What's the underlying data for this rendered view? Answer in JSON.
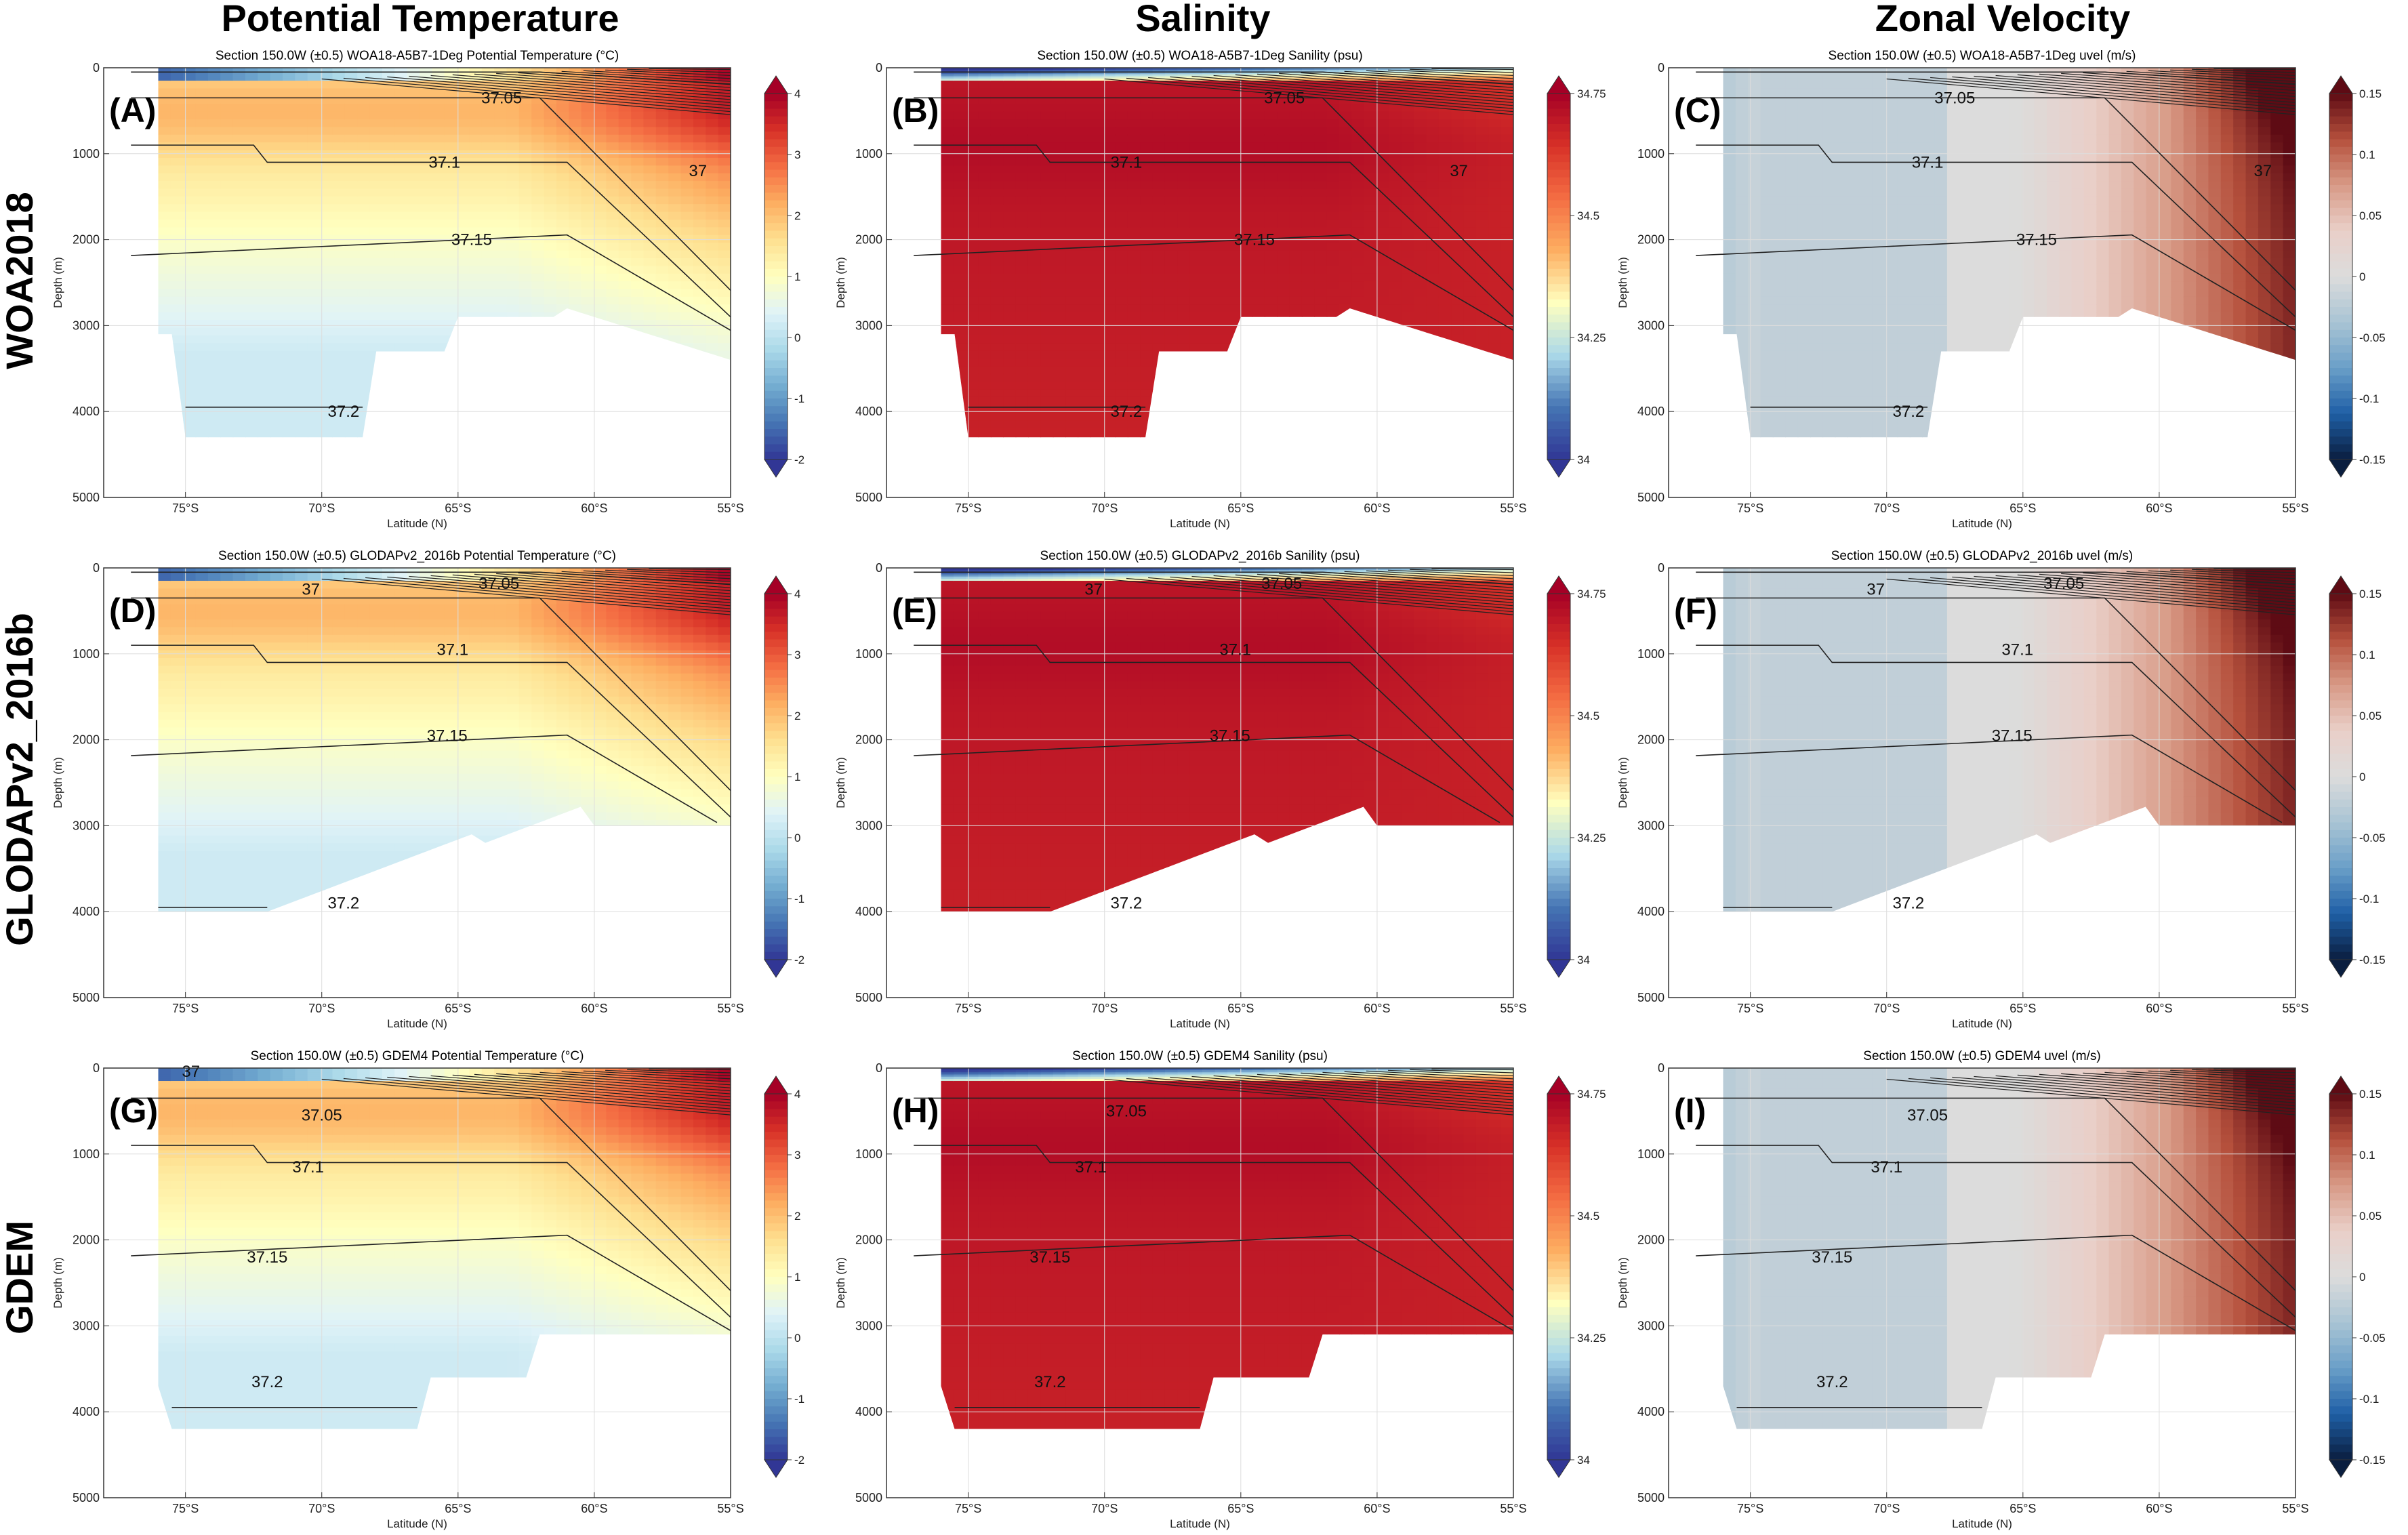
{
  "figure": {
    "column_titles": [
      "Potential Temperature",
      "Salinity",
      "Zonal Velocity"
    ],
    "row_titles": [
      "WOA2018",
      "GLODAPv2_2016b",
      "GDEM"
    ],
    "colors": {
      "temperature": [
        "#313695",
        "#4575b4",
        "#74add1",
        "#abd9e9",
        "#e0f3f8",
        "#ffffbf",
        "#fee090",
        "#fdae61",
        "#f46d43",
        "#d73027",
        "#a50026"
      ],
      "salinity": [
        "#313695",
        "#4575b4",
        "#abd9e9",
        "#ffffbf",
        "#fdae61",
        "#f46d43",
        "#d73027",
        "#a50026"
      ],
      "velocity": [
        "#0a1e3f",
        "#1f5fa6",
        "#6a9fc8",
        "#a9c4d4",
        "#dcdcdc",
        "#e9cfc8",
        "#d89a86",
        "#b5503c",
        "#5e0b14"
      ],
      "contour": "#222222",
      "grid": "#dddddd"
    }
  },
  "chart_data": [
    {
      "panel": "A",
      "letter": "(A)",
      "column": 0,
      "row": 0,
      "variable": "temperature",
      "type": "heatmap",
      "title": "Section 150.0W (±0.5) WOA18-A5B7-1Deg Potential Temperature (°C)",
      "xlabel": "Latitude (N)",
      "ylabel": "Depth (m)",
      "xlim": [
        -78,
        -55
      ],
      "ylim": [
        5000,
        0
      ],
      "xticks": [
        "75°S",
        "70°S",
        "65°S",
        "60°S",
        "55°S"
      ],
      "xtick_values": [
        -75,
        -70,
        -65,
        -60,
        -55
      ],
      "yticks": [
        0,
        1000,
        2000,
        3000,
        4000,
        5000
      ],
      "colorbar": {
        "ticks": [
          "-2",
          "-1",
          "0",
          "1",
          "2",
          "3",
          "4"
        ],
        "range": [
          -2,
          4
        ]
      },
      "contour_labels": [
        {
          "text": "37.05",
          "lat": -63.4,
          "depth": 350
        },
        {
          "text": "37.1",
          "lat": -65.5,
          "depth": 1100
        },
        {
          "text": "37.15",
          "lat": -64.5,
          "depth": 2000
        },
        {
          "text": "37.2",
          "lat": -69.2,
          "depth": 4000
        },
        {
          "text": "37",
          "lat": -56.2,
          "depth": 1200
        }
      ]
    },
    {
      "panel": "B",
      "letter": "(B)",
      "column": 1,
      "row": 0,
      "variable": "salinity",
      "type": "heatmap",
      "title": "Section 150.0W (±0.5) WOA18-A5B7-1Deg Sanility (psu)",
      "xlabel": "Latitude (N)",
      "ylabel": "Depth (m)",
      "xlim": [
        -78,
        -55
      ],
      "ylim": [
        5000,
        0
      ],
      "xticks": [
        "75°S",
        "70°S",
        "65°S",
        "60°S",
        "55°S"
      ],
      "xtick_values": [
        -75,
        -70,
        -65,
        -60,
        -55
      ],
      "yticks": [
        0,
        1000,
        2000,
        3000,
        4000,
        5000
      ],
      "colorbar": {
        "ticks": [
          "34",
          "34.25",
          "34.5",
          "34.75"
        ],
        "range": [
          34,
          34.75
        ]
      },
      "contour_labels": [
        {
          "text": "37.05",
          "lat": -63.4,
          "depth": 350
        },
        {
          "text": "37.1",
          "lat": -69.2,
          "depth": 1100
        },
        {
          "text": "37.15",
          "lat": -64.5,
          "depth": 2000
        },
        {
          "text": "37.2",
          "lat": -69.2,
          "depth": 4000
        },
        {
          "text": "37",
          "lat": -57.0,
          "depth": 1200
        }
      ]
    },
    {
      "panel": "C",
      "letter": "(C)",
      "column": 2,
      "row": 0,
      "variable": "velocity",
      "type": "heatmap",
      "title": "Section 150.0W (±0.5) WOA18-A5B7-1Deg uvel (m/s)",
      "xlabel": "Latitude (N)",
      "ylabel": "Depth (m)",
      "xlim": [
        -78,
        -55
      ],
      "ylim": [
        5000,
        0
      ],
      "xticks": [
        "75°S",
        "70°S",
        "65°S",
        "60°S",
        "55°S"
      ],
      "xtick_values": [
        -75,
        -70,
        -65,
        -60,
        -55
      ],
      "yticks": [
        0,
        1000,
        2000,
        3000,
        4000,
        5000
      ],
      "colorbar": {
        "ticks": [
          "-0.15",
          "-0.1",
          "-0.05",
          "0",
          "0.05",
          "0.1",
          "0.15"
        ],
        "range": [
          -0.15,
          0.15
        ]
      },
      "contour_labels": [
        {
          "text": "37.05",
          "lat": -67.5,
          "depth": 350
        },
        {
          "text": "37.1",
          "lat": -68.5,
          "depth": 1100
        },
        {
          "text": "37.15",
          "lat": -64.5,
          "depth": 2000
        },
        {
          "text": "37.2",
          "lat": -69.2,
          "depth": 4000
        },
        {
          "text": "37",
          "lat": -56.2,
          "depth": 1200
        }
      ]
    },
    {
      "panel": "D",
      "letter": "(D)",
      "column": 0,
      "row": 1,
      "variable": "temperature",
      "type": "heatmap",
      "title": "Section 150.0W (±0.5) GLODAPv2_2016b Potential Temperature (°C)",
      "xlabel": "Latitude (N)",
      "ylabel": "Depth (m)",
      "xlim": [
        -78,
        -55
      ],
      "ylim": [
        5000,
        0
      ],
      "xticks": [
        "75°S",
        "70°S",
        "65°S",
        "60°S",
        "55°S"
      ],
      "xtick_values": [
        -75,
        -70,
        -65,
        -60,
        -55
      ],
      "yticks": [
        0,
        1000,
        2000,
        3000,
        4000,
        5000
      ],
      "colorbar": {
        "ticks": [
          "-2",
          "-1",
          "0",
          "1",
          "2",
          "3",
          "4"
        ],
        "range": [
          -2,
          4
        ]
      },
      "contour_labels": [
        {
          "text": "37",
          "lat": -70.4,
          "depth": 250
        },
        {
          "text": "37.05",
          "lat": -63.5,
          "depth": 180
        },
        {
          "text": "37.1",
          "lat": -65.2,
          "depth": 950
        },
        {
          "text": "37.15",
          "lat": -65.4,
          "depth": 1950
        },
        {
          "text": "37.2",
          "lat": -69.2,
          "depth": 3900
        }
      ]
    },
    {
      "panel": "E",
      "letter": "(E)",
      "column": 1,
      "row": 1,
      "variable": "salinity",
      "type": "heatmap",
      "title": "Section 150.0W (±0.5) GLODAPv2_2016b Sanility (psu)",
      "xlabel": "Latitude (N)",
      "ylabel": "Depth (m)",
      "xlim": [
        -78,
        -55
      ],
      "ylim": [
        5000,
        0
      ],
      "xticks": [
        "75°S",
        "70°S",
        "65°S",
        "60°S",
        "55°S"
      ],
      "xtick_values": [
        -75,
        -70,
        -65,
        -60,
        -55
      ],
      "yticks": [
        0,
        1000,
        2000,
        3000,
        4000,
        5000
      ],
      "colorbar": {
        "ticks": [
          "34",
          "34.25",
          "34.5",
          "34.75"
        ],
        "range": [
          34,
          34.75
        ]
      },
      "contour_labels": [
        {
          "text": "37",
          "lat": -70.4,
          "depth": 250
        },
        {
          "text": "37.05",
          "lat": -63.5,
          "depth": 180
        },
        {
          "text": "37.1",
          "lat": -65.2,
          "depth": 950
        },
        {
          "text": "37.15",
          "lat": -65.4,
          "depth": 1950
        },
        {
          "text": "37.2",
          "lat": -69.2,
          "depth": 3900
        }
      ]
    },
    {
      "panel": "F",
      "letter": "(F)",
      "column": 2,
      "row": 1,
      "variable": "velocity",
      "type": "heatmap",
      "title": "Section 150.0W (±0.5) GLODAPv2_2016b uvel (m/s)",
      "xlabel": "Latitude (N)",
      "ylabel": "Depth (m)",
      "xlim": [
        -78,
        -55
      ],
      "ylim": [
        5000,
        0
      ],
      "xticks": [
        "75°S",
        "70°S",
        "65°S",
        "60°S",
        "55°S"
      ],
      "xtick_values": [
        -75,
        -70,
        -65,
        -60,
        -55
      ],
      "yticks": [
        0,
        1000,
        2000,
        3000,
        4000,
        5000
      ],
      "colorbar": {
        "ticks": [
          "-0.15",
          "-0.1",
          "-0.05",
          "0",
          "0.05",
          "0.1",
          "0.15"
        ],
        "range": [
          -0.15,
          0.15
        ]
      },
      "contour_labels": [
        {
          "text": "37",
          "lat": -70.4,
          "depth": 250
        },
        {
          "text": "37.05",
          "lat": -63.5,
          "depth": 180
        },
        {
          "text": "37.1",
          "lat": -65.2,
          "depth": 950
        },
        {
          "text": "37.15",
          "lat": -65.4,
          "depth": 1950
        },
        {
          "text": "37.2",
          "lat": -69.2,
          "depth": 3900
        }
      ]
    },
    {
      "panel": "G",
      "letter": "(G)",
      "column": 0,
      "row": 2,
      "variable": "temperature",
      "type": "heatmap",
      "title": "Section 150.0W (±0.5) GDEM4 Potential Temperature (°C)",
      "xlabel": "Latitude (N)",
      "ylabel": "Depth (m)",
      "xlim": [
        -78,
        -55
      ],
      "ylim": [
        5000,
        0
      ],
      "xticks": [
        "75°S",
        "70°S",
        "65°S",
        "60°S",
        "55°S"
      ],
      "xtick_values": [
        -75,
        -70,
        -65,
        -60,
        -55
      ],
      "yticks": [
        0,
        1000,
        2000,
        3000,
        4000,
        5000
      ],
      "colorbar": {
        "ticks": [
          "-2",
          "-1",
          "0",
          "1",
          "2",
          "3",
          "4"
        ],
        "range": [
          -2,
          4
        ]
      },
      "contour_labels": [
        {
          "text": "37",
          "lat": -74.8,
          "depth": 40
        },
        {
          "text": "37.05",
          "lat": -70.0,
          "depth": 550
        },
        {
          "text": "37.1",
          "lat": -70.5,
          "depth": 1150
        },
        {
          "text": "37.15",
          "lat": -72.0,
          "depth": 2200
        },
        {
          "text": "37.2",
          "lat": -72.0,
          "depth": 3650
        }
      ]
    },
    {
      "panel": "H",
      "letter": "(H)",
      "column": 1,
      "row": 2,
      "variable": "salinity",
      "type": "heatmap",
      "title": "Section 150.0W (±0.5) GDEM4 Sanility (psu)",
      "xlabel": "Latitude (N)",
      "ylabel": "Depth (m)",
      "xlim": [
        -78,
        -55
      ],
      "ylim": [
        5000,
        0
      ],
      "xticks": [
        "75°S",
        "70°S",
        "65°S",
        "60°S",
        "55°S"
      ],
      "xtick_values": [
        -75,
        -70,
        -65,
        -60,
        -55
      ],
      "yticks": [
        0,
        1000,
        2000,
        3000,
        4000,
        5000
      ],
      "colorbar": {
        "ticks": [
          "34",
          "34.25",
          "34.5",
          "34.75"
        ],
        "range": [
          34,
          34.75
        ]
      },
      "contour_labels": [
        {
          "text": "37.05",
          "lat": -69.2,
          "depth": 500
        },
        {
          "text": "37.1",
          "lat": -70.5,
          "depth": 1150
        },
        {
          "text": "37.15",
          "lat": -72.0,
          "depth": 2200
        },
        {
          "text": "37.2",
          "lat": -72.0,
          "depth": 3650
        }
      ]
    },
    {
      "panel": "I",
      "letter": "(I)",
      "column": 2,
      "row": 2,
      "variable": "velocity",
      "type": "heatmap",
      "title": "Section 150.0W (±0.5) GDEM4 uvel (m/s)",
      "xlabel": "Latitude (N)",
      "ylabel": "Depth (m)",
      "xlim": [
        -78,
        -55
      ],
      "ylim": [
        5000,
        0
      ],
      "xticks": [
        "75°S",
        "70°S",
        "65°S",
        "60°S",
        "55°S"
      ],
      "xtick_values": [
        -75,
        -70,
        -65,
        -60,
        -55
      ],
      "yticks": [
        0,
        1000,
        2000,
        3000,
        4000,
        5000
      ],
      "colorbar": {
        "ticks": [
          "-0.15",
          "-0.1",
          "-0.05",
          "0",
          "0.05",
          "0.1",
          "0.15"
        ],
        "range": [
          -0.15,
          0.15
        ]
      },
      "contour_labels": [
        {
          "text": "37.05",
          "lat": -68.5,
          "depth": 550
        },
        {
          "text": "37.1",
          "lat": -70.0,
          "depth": 1150
        },
        {
          "text": "37.15",
          "lat": -72.0,
          "depth": 2200
        },
        {
          "text": "37.2",
          "lat": -72.0,
          "depth": 3650
        }
      ]
    }
  ]
}
